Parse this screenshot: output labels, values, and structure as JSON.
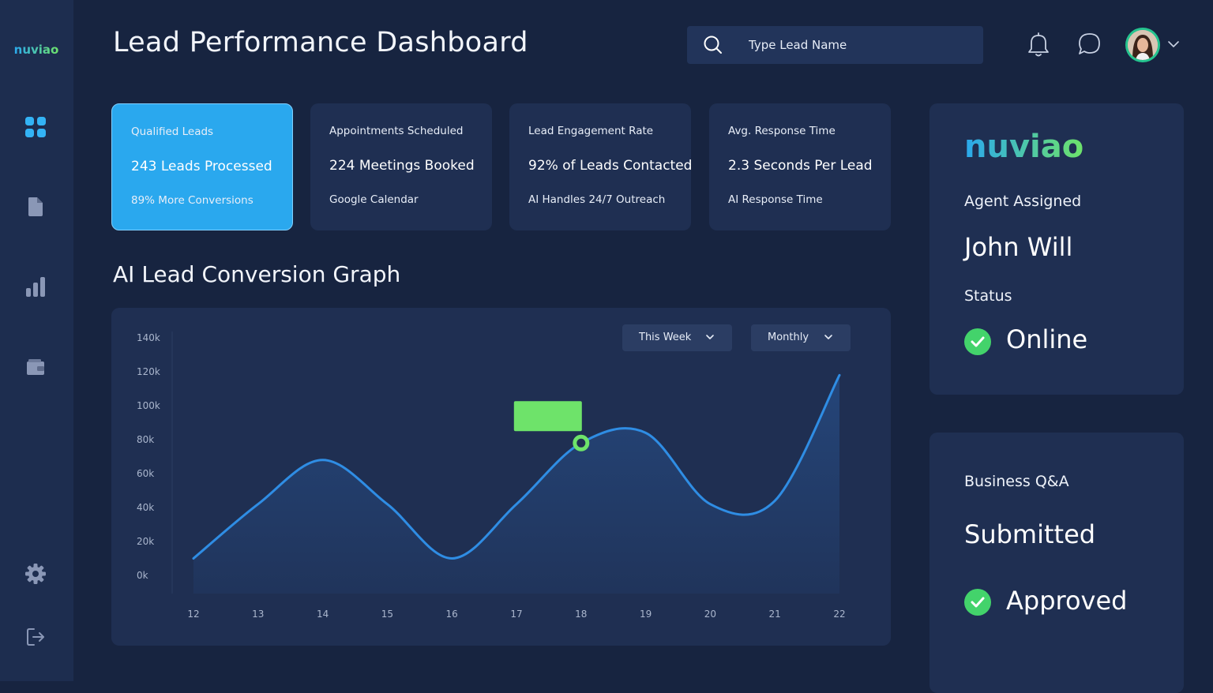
{
  "brand": {
    "name": "nuviao",
    "gradient_start": "#2aa8ee",
    "gradient_end": "#6ee36a"
  },
  "header": {
    "title": "Lead Performance Dashboard",
    "search_placeholder": "Type Lead Name",
    "icons": [
      "search-icon",
      "bell-icon",
      "chat-icon",
      "chevron-down-icon"
    ]
  },
  "sidebar": {
    "items": [
      {
        "icon": "grid-icon",
        "active": true
      },
      {
        "icon": "document-icon",
        "active": false
      },
      {
        "icon": "bar-chart-icon",
        "active": false
      },
      {
        "icon": "wallet-icon",
        "active": false
      },
      {
        "icon": "gear-icon",
        "active": false
      },
      {
        "icon": "logout-icon",
        "active": false
      }
    ]
  },
  "kpis": [
    {
      "label": "Qualified Leads",
      "value": "243 Leads Processed",
      "sub": "89% More Conversions",
      "active": true
    },
    {
      "label": "Appointments Scheduled",
      "value": "224 Meetings Booked",
      "sub": "Google Calendar",
      "active": false
    },
    {
      "label": "Lead Engagement Rate",
      "value": "92% of Leads Contacted",
      "sub": "AI Handles 24/7 Outreach",
      "active": false
    },
    {
      "label": "Avg. Response Time",
      "value": "2.3 Seconds Per Lead",
      "sub": "AI Response Time",
      "active": false
    }
  ],
  "graph": {
    "title": "AI Lead Conversion Graph",
    "filters": {
      "period": "This Week",
      "interval": "Monthly"
    }
  },
  "chart_data": {
    "type": "area",
    "x": [
      12,
      13,
      14,
      15,
      16,
      17,
      18,
      19,
      20,
      21,
      22
    ],
    "y_ticks": [
      "0k",
      "20k",
      "40k",
      "60k",
      "80k",
      "100k",
      "120k",
      "140k"
    ],
    "ylim": [
      0,
      140000
    ],
    "series": [
      {
        "values": [
          10000,
          42000,
          68000,
          42000,
          10000,
          42000,
          78000,
          84000,
          42000,
          44000,
          118000
        ],
        "color": "#2f8de4"
      }
    ],
    "highlight": {
      "x": 18,
      "value": 78000,
      "color": "#6ee36a"
    },
    "grid": false
  },
  "agent": {
    "label": "Agent Assigned",
    "name": "John Will",
    "status_label": "Status",
    "status": "Online",
    "status_color": "#43d36b"
  },
  "qa": {
    "label": "Business Q&A",
    "value": "Submitted",
    "status": "Approved",
    "status_color": "#43d36b"
  }
}
